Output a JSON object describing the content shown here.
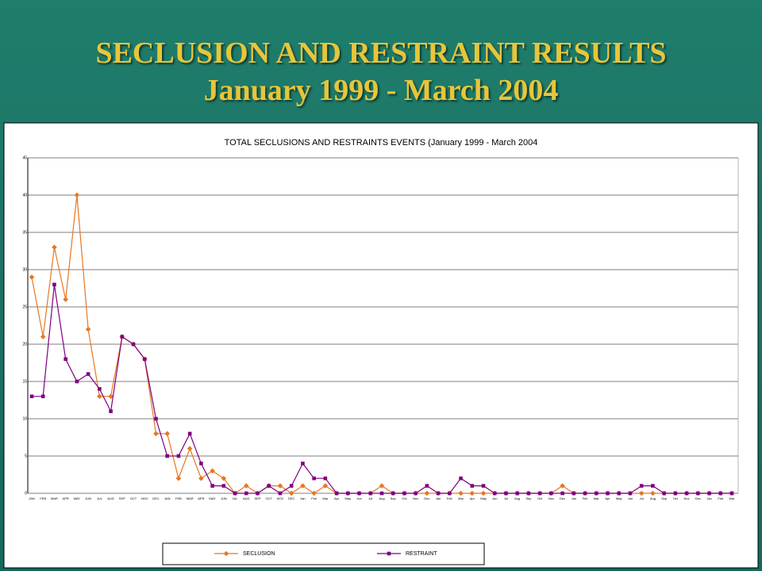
{
  "slide": {
    "title": "SECLUSION AND RESTRAINT RESULTS",
    "subtitle": "January 1999 - March 2004"
  },
  "chart_data": {
    "type": "line",
    "title": "TOTAL SECLUSIONS AND RESTRAINTS EVENTS (January 1999 - March 2004",
    "categories": [
      "JAN",
      "FEB",
      "MAR",
      "APR",
      "MAY",
      "JUN",
      "JUL",
      "AUG",
      "SEP",
      "OCT",
      "NOV",
      "DEC",
      "JAN",
      "FEB",
      "MAR",
      "APR",
      "MAY",
      "JUN",
      "JUL",
      "AUG",
      "SEP",
      "OCT",
      "NOV",
      "DEC",
      "Jan",
      "Feb",
      "Mar",
      "Apr",
      "May",
      "Jun",
      "Jul",
      "Aug",
      "Sep",
      "Oct",
      "Nov",
      "Dec",
      "Jan",
      "Feb",
      "Mar",
      "Apr",
      "May",
      "Jun",
      "Jul",
      "Aug",
      "Sep",
      "Oct",
      "Nov",
      "Dec",
      "Jan",
      "Feb",
      "Mar",
      "Apr",
      "May",
      "Jun",
      "Jul",
      "Aug",
      "Sep",
      "Oct",
      "Nov",
      "Dec",
      "Jan",
      "Feb",
      "Mar"
    ],
    "series": [
      {
        "name": "SECLUSION",
        "color": "#e87722",
        "marker": "diamond",
        "values": [
          29,
          21,
          33,
          26,
          40,
          22,
          13,
          13,
          21,
          20,
          18,
          8,
          8,
          2,
          6,
          2,
          3,
          2,
          0,
          1,
          0,
          1,
          1,
          0,
          1,
          0,
          1,
          0,
          0,
          0,
          0,
          1,
          0,
          0,
          0,
          0,
          0,
          0,
          0,
          0,
          0,
          0,
          0,
          0,
          0,
          0,
          0,
          1,
          0,
          0,
          0,
          0,
          0,
          0,
          0,
          0,
          0,
          0,
          0,
          0,
          0,
          0,
          0
        ]
      },
      {
        "name": "RESTRAINT",
        "color": "#800080",
        "marker": "square",
        "values": [
          13,
          13,
          28,
          18,
          15,
          16,
          14,
          11,
          21,
          20,
          18,
          10,
          5,
          5,
          8,
          4,
          1,
          1,
          0,
          0,
          0,
          1,
          0,
          1,
          4,
          2,
          2,
          0,
          0,
          0,
          0,
          0,
          0,
          0,
          0,
          1,
          0,
          0,
          2,
          1,
          1,
          0,
          0,
          0,
          0,
          0,
          0,
          0,
          0,
          0,
          0,
          0,
          0,
          0,
          1,
          1,
          0,
          0,
          0,
          0,
          0,
          0,
          0
        ]
      }
    ],
    "ylim": [
      0,
      45
    ],
    "yticks": [
      0,
      5,
      10,
      15,
      20,
      25,
      30,
      35,
      40,
      45
    ],
    "grid": true
  }
}
